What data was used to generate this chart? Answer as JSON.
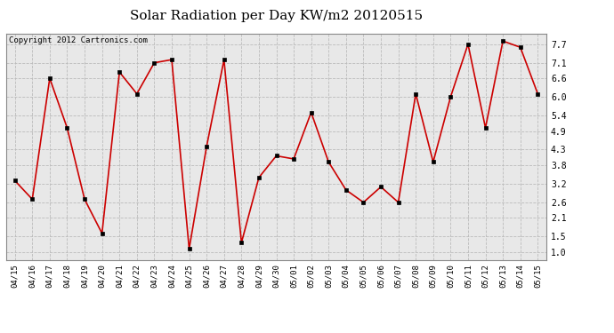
{
  "title": "Solar Radiation per Day KW/m2 20120515",
  "copyright": "Copyright 2012 Cartronics.com",
  "labels": [
    "04/15",
    "04/16",
    "04/17",
    "04/18",
    "04/19",
    "04/20",
    "04/21",
    "04/22",
    "04/23",
    "04/24",
    "04/25",
    "04/26",
    "04/27",
    "04/28",
    "04/29",
    "04/30",
    "05/01",
    "05/02",
    "05/03",
    "05/04",
    "05/05",
    "05/06",
    "05/07",
    "05/08",
    "05/09",
    "05/10",
    "05/11",
    "05/12",
    "05/13",
    "05/14",
    "05/15"
  ],
  "values": [
    3.3,
    2.7,
    6.6,
    5.0,
    2.7,
    1.6,
    6.8,
    6.1,
    7.1,
    7.2,
    1.1,
    4.4,
    7.2,
    1.3,
    3.4,
    4.1,
    4.0,
    5.5,
    3.9,
    3.0,
    2.6,
    3.1,
    2.6,
    6.1,
    3.9,
    6.0,
    7.7,
    5.0,
    7.8,
    7.6,
    6.1
  ],
  "line_color": "#cc0000",
  "marker_color": "#000000",
  "bg_color": "#ffffff",
  "plot_bg_color": "#e8e8e8",
  "grid_color": "#bbbbbb",
  "yticks": [
    1.0,
    1.5,
    2.1,
    2.6,
    3.2,
    3.8,
    4.3,
    4.9,
    5.4,
    6.0,
    6.6,
    7.1,
    7.7
  ],
  "ylim": [
    0.75,
    8.05
  ],
  "title_fontsize": 11,
  "copyright_fontsize": 6.5,
  "tick_fontsize": 6.5,
  "ytick_fontsize": 7.0
}
